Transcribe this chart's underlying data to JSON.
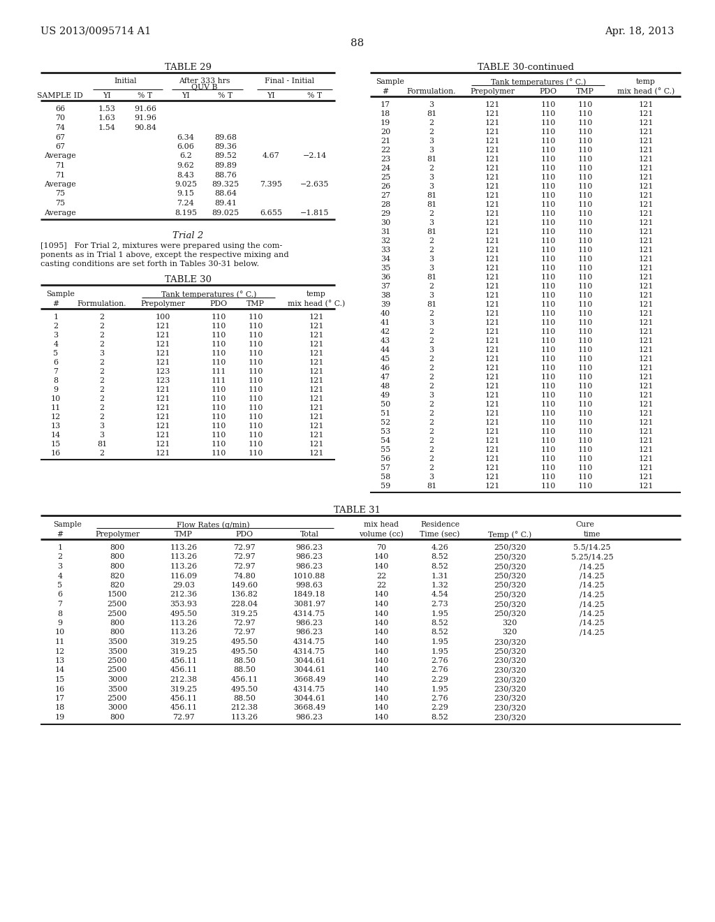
{
  "header_left": "US 2013/0095714 A1",
  "header_right": "Apr. 18, 2013",
  "page_number": "88",
  "table29_title": "TABLE 29",
  "table29_data": [
    [
      "66",
      "1.53",
      "91.66",
      "",
      "",
      "",
      ""
    ],
    [
      "70",
      "1.63",
      "91.96",
      "",
      "",
      "",
      ""
    ],
    [
      "74",
      "1.54",
      "90.84",
      "",
      "",
      "",
      ""
    ],
    [
      "67",
      "",
      "",
      "6.34",
      "89.68",
      "",
      ""
    ],
    [
      "67",
      "",
      "",
      "6.06",
      "89.36",
      "",
      ""
    ],
    [
      "Average",
      "",
      "",
      "6.2",
      "89.52",
      "4.67",
      "−2.14"
    ],
    [
      "71",
      "",
      "",
      "9.62",
      "89.89",
      "",
      ""
    ],
    [
      "71",
      "",
      "",
      "8.43",
      "88.76",
      "",
      ""
    ],
    [
      "Average",
      "",
      "",
      "9.025",
      "89.325",
      "7.395",
      "−2.635"
    ],
    [
      "75",
      "",
      "",
      "9.15",
      "88.64",
      "",
      ""
    ],
    [
      "75",
      "",
      "",
      "7.24",
      "89.41",
      "",
      ""
    ],
    [
      "Average",
      "",
      "",
      "8.195",
      "89.025",
      "6.655",
      "−1.815"
    ]
  ],
  "trial2_title": "Trial 2",
  "table30_title": "TABLE 30",
  "table30_data": [
    [
      "1",
      "2",
      "100",
      "110",
      "110",
      "121"
    ],
    [
      "2",
      "2",
      "121",
      "110",
      "110",
      "121"
    ],
    [
      "3",
      "2",
      "121",
      "110",
      "110",
      "121"
    ],
    [
      "4",
      "2",
      "121",
      "110",
      "110",
      "121"
    ],
    [
      "5",
      "3",
      "121",
      "110",
      "110",
      "121"
    ],
    [
      "6",
      "2",
      "121",
      "110",
      "110",
      "121"
    ],
    [
      "7",
      "2",
      "123",
      "111",
      "110",
      "121"
    ],
    [
      "8",
      "2",
      "123",
      "111",
      "110",
      "121"
    ],
    [
      "9",
      "2",
      "121",
      "110",
      "110",
      "121"
    ],
    [
      "10",
      "2",
      "121",
      "110",
      "110",
      "121"
    ],
    [
      "11",
      "2",
      "121",
      "110",
      "110",
      "121"
    ],
    [
      "12",
      "2",
      "121",
      "110",
      "110",
      "121"
    ],
    [
      "13",
      "3",
      "121",
      "110",
      "110",
      "121"
    ],
    [
      "14",
      "3",
      "121",
      "110",
      "110",
      "121"
    ],
    [
      "15",
      "81",
      "121",
      "110",
      "110",
      "121"
    ],
    [
      "16",
      "2",
      "121",
      "110",
      "110",
      "121"
    ]
  ],
  "table30cont_title": "TABLE 30-continued",
  "table30cont_data": [
    [
      "17",
      "3",
      "121",
      "110",
      "110",
      "121"
    ],
    [
      "18",
      "81",
      "121",
      "110",
      "110",
      "121"
    ],
    [
      "19",
      "2",
      "121",
      "110",
      "110",
      "121"
    ],
    [
      "20",
      "2",
      "121",
      "110",
      "110",
      "121"
    ],
    [
      "21",
      "3",
      "121",
      "110",
      "110",
      "121"
    ],
    [
      "22",
      "3",
      "121",
      "110",
      "110",
      "121"
    ],
    [
      "23",
      "81",
      "121",
      "110",
      "110",
      "121"
    ],
    [
      "24",
      "2",
      "121",
      "110",
      "110",
      "121"
    ],
    [
      "25",
      "3",
      "121",
      "110",
      "110",
      "121"
    ],
    [
      "26",
      "3",
      "121",
      "110",
      "110",
      "121"
    ],
    [
      "27",
      "81",
      "121",
      "110",
      "110",
      "121"
    ],
    [
      "28",
      "81",
      "121",
      "110",
      "110",
      "121"
    ],
    [
      "29",
      "2",
      "121",
      "110",
      "110",
      "121"
    ],
    [
      "30",
      "3",
      "121",
      "110",
      "110",
      "121"
    ],
    [
      "31",
      "81",
      "121",
      "110",
      "110",
      "121"
    ],
    [
      "32",
      "2",
      "121",
      "110",
      "110",
      "121"
    ],
    [
      "33",
      "2",
      "121",
      "110",
      "110",
      "121"
    ],
    [
      "34",
      "3",
      "121",
      "110",
      "110",
      "121"
    ],
    [
      "35",
      "3",
      "121",
      "110",
      "110",
      "121"
    ],
    [
      "36",
      "81",
      "121",
      "110",
      "110",
      "121"
    ],
    [
      "37",
      "2",
      "121",
      "110",
      "110",
      "121"
    ],
    [
      "38",
      "3",
      "121",
      "110",
      "110",
      "121"
    ],
    [
      "39",
      "81",
      "121",
      "110",
      "110",
      "121"
    ],
    [
      "40",
      "2",
      "121",
      "110",
      "110",
      "121"
    ],
    [
      "41",
      "3",
      "121",
      "110",
      "110",
      "121"
    ],
    [
      "42",
      "2",
      "121",
      "110",
      "110",
      "121"
    ],
    [
      "43",
      "2",
      "121",
      "110",
      "110",
      "121"
    ],
    [
      "44",
      "3",
      "121",
      "110",
      "110",
      "121"
    ],
    [
      "45",
      "2",
      "121",
      "110",
      "110",
      "121"
    ],
    [
      "46",
      "2",
      "121",
      "110",
      "110",
      "121"
    ],
    [
      "47",
      "2",
      "121",
      "110",
      "110",
      "121"
    ],
    [
      "48",
      "2",
      "121",
      "110",
      "110",
      "121"
    ],
    [
      "49",
      "3",
      "121",
      "110",
      "110",
      "121"
    ],
    [
      "50",
      "2",
      "121",
      "110",
      "110",
      "121"
    ],
    [
      "51",
      "2",
      "121",
      "110",
      "110",
      "121"
    ],
    [
      "52",
      "2",
      "121",
      "110",
      "110",
      "121"
    ],
    [
      "53",
      "2",
      "121",
      "110",
      "110",
      "121"
    ],
    [
      "54",
      "2",
      "121",
      "110",
      "110",
      "121"
    ],
    [
      "55",
      "2",
      "121",
      "110",
      "110",
      "121"
    ],
    [
      "56",
      "2",
      "121",
      "110",
      "110",
      "121"
    ],
    [
      "57",
      "2",
      "121",
      "110",
      "110",
      "121"
    ],
    [
      "58",
      "3",
      "121",
      "110",
      "110",
      "121"
    ],
    [
      "59",
      "81",
      "121",
      "110",
      "110",
      "121"
    ]
  ],
  "table31_title": "TABLE 31",
  "table31_data": [
    [
      "1",
      "800",
      "113.26",
      "72.97",
      "986.23",
      "70",
      "4.26",
      "250/320",
      "5.5/14.25"
    ],
    [
      "2",
      "800",
      "113.26",
      "72.97",
      "986.23",
      "140",
      "8.52",
      "250/320",
      "5.25/14.25"
    ],
    [
      "3",
      "800",
      "113.26",
      "72.97",
      "986.23",
      "140",
      "8.52",
      "250/320",
      "/14.25"
    ],
    [
      "4",
      "820",
      "116.09",
      "74.80",
      "1010.88",
      "22",
      "1.31",
      "250/320",
      "/14.25"
    ],
    [
      "5",
      "820",
      "29.03",
      "149.60",
      "998.63",
      "22",
      "1.32",
      "250/320",
      "/14.25"
    ],
    [
      "6",
      "1500",
      "212.36",
      "136.82",
      "1849.18",
      "140",
      "4.54",
      "250/320",
      "/14.25"
    ],
    [
      "7",
      "2500",
      "353.93",
      "228.04",
      "3081.97",
      "140",
      "2.73",
      "250/320",
      "/14.25"
    ],
    [
      "8",
      "2500",
      "495.50",
      "319.25",
      "4314.75",
      "140",
      "1.95",
      "250/320",
      "/14.25"
    ],
    [
      "9",
      "800",
      "113.26",
      "72.97",
      "986.23",
      "140",
      "8.52",
      "320",
      "/14.25"
    ],
    [
      "10",
      "800",
      "113.26",
      "72.97",
      "986.23",
      "140",
      "8.52",
      "320",
      "/14.25"
    ],
    [
      "11",
      "3500",
      "319.25",
      "495.50",
      "4314.75",
      "140",
      "1.95",
      "230/320",
      ""
    ],
    [
      "12",
      "3500",
      "319.25",
      "495.50",
      "4314.75",
      "140",
      "1.95",
      "250/320",
      ""
    ],
    [
      "13",
      "2500",
      "456.11",
      "88.50",
      "3044.61",
      "140",
      "2.76",
      "230/320",
      ""
    ],
    [
      "14",
      "2500",
      "456.11",
      "88.50",
      "3044.61",
      "140",
      "2.76",
      "230/320",
      ""
    ],
    [
      "15",
      "3000",
      "212.38",
      "456.11",
      "3668.49",
      "140",
      "2.29",
      "230/320",
      ""
    ],
    [
      "16",
      "3500",
      "319.25",
      "495.50",
      "4314.75",
      "140",
      "1.95",
      "230/320",
      ""
    ],
    [
      "17",
      "2500",
      "456.11",
      "88.50",
      "3044.61",
      "140",
      "2.76",
      "230/320",
      ""
    ],
    [
      "18",
      "3000",
      "456.11",
      "212.38",
      "3668.49",
      "140",
      "2.29",
      "230/320",
      ""
    ],
    [
      "19",
      "800",
      "72.97",
      "113.26",
      "986.23",
      "140",
      "8.52",
      "230/320",
      ""
    ]
  ],
  "bg_color": "#ffffff",
  "text_color": "#1a1a1a"
}
